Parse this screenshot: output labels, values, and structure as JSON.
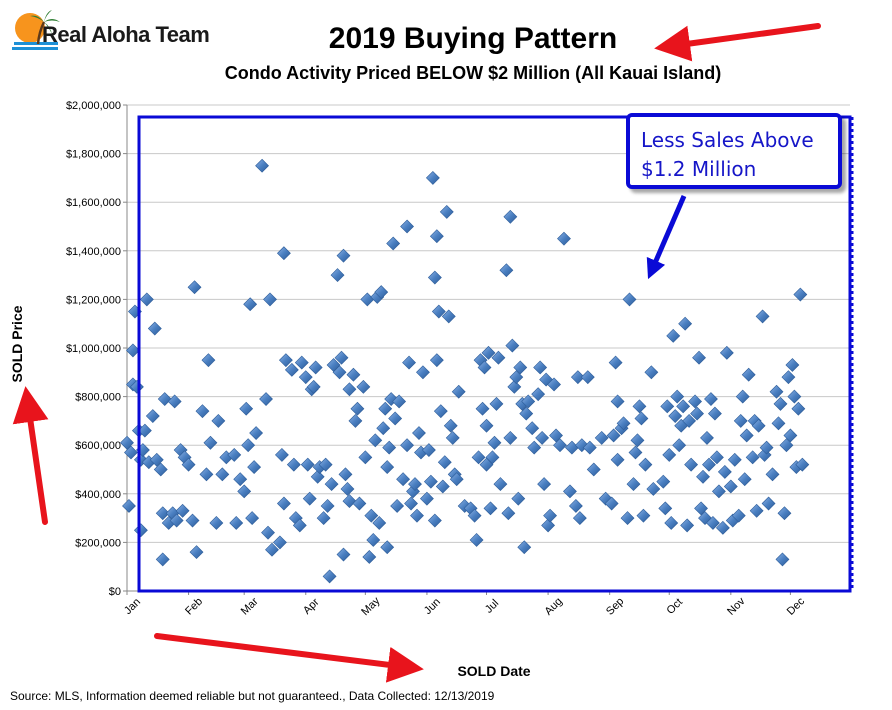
{
  "logo": {
    "text": "Real Aloha Team",
    "icon": "palm-tree-sunset-logo",
    "colors": {
      "sun": "#f7941d",
      "water": "#1e90d6",
      "palm": "#2e7d32"
    }
  },
  "chart_data": {
    "type": "scatter",
    "title": "2019 Buying Pattern",
    "subtitle": "Condo Activity Priced BELOW $2 Million (All Kauai Island)",
    "xlabel": "SOLD Date",
    "ylabel": "SOLD Price",
    "x_ticks": [
      "Jan",
      "Feb",
      "Mar",
      "Apr",
      "May",
      "Jun",
      "Jul",
      "Aug",
      "Sep",
      "Oct",
      "Nov",
      "Dec"
    ],
    "y_ticks": [
      "$0",
      "$200,000",
      "$400,000",
      "$600,000",
      "$800,000",
      "$1,000,000",
      "$1,200,000",
      "$1,400,000",
      "$1,600,000",
      "$1,800,000",
      "$2,000,000"
    ],
    "xlim": [
      "2019-01-01",
      "2019-12-31"
    ],
    "ylim": [
      0,
      2000000
    ],
    "grid": true,
    "legend": "none",
    "marker_color": "#4a7fc1",
    "annotation": {
      "text": "Less Sales Above\n$1.2 Million"
    },
    "points": [
      [
        "2019-01-01",
        610000
      ],
      [
        "2019-01-02",
        350000
      ],
      [
        "2019-01-03",
        570000
      ],
      [
        "2019-01-04",
        850000
      ],
      [
        "2019-01-04",
        990000
      ],
      [
        "2019-01-05",
        1150000
      ],
      [
        "2019-01-06",
        840000
      ],
      [
        "2019-01-07",
        660000
      ],
      [
        "2019-01-08",
        540000
      ],
      [
        "2019-01-08",
        250000
      ],
      [
        "2019-01-09",
        580000
      ],
      [
        "2019-01-10",
        660000
      ],
      [
        "2019-01-11",
        1200000
      ],
      [
        "2019-01-12",
        530000
      ],
      [
        "2019-01-14",
        720000
      ],
      [
        "2019-01-15",
        1080000
      ],
      [
        "2019-01-16",
        540000
      ],
      [
        "2019-01-18",
        500000
      ],
      [
        "2019-01-19",
        320000
      ],
      [
        "2019-01-19",
        130000
      ],
      [
        "2019-01-20",
        790000
      ],
      [
        "2019-01-22",
        280000
      ],
      [
        "2019-01-24",
        320000
      ],
      [
        "2019-01-25",
        780000
      ],
      [
        "2019-01-26",
        290000
      ],
      [
        "2019-01-28",
        580000
      ],
      [
        "2019-01-29",
        330000
      ],
      [
        "2019-01-30",
        550000
      ],
      [
        "2019-02-01",
        520000
      ],
      [
        "2019-02-03",
        290000
      ],
      [
        "2019-02-04",
        1250000
      ],
      [
        "2019-02-05",
        160000
      ],
      [
        "2019-02-08",
        740000
      ],
      [
        "2019-02-10",
        480000
      ],
      [
        "2019-02-11",
        950000
      ],
      [
        "2019-02-12",
        610000
      ],
      [
        "2019-02-15",
        280000
      ],
      [
        "2019-02-16",
        700000
      ],
      [
        "2019-02-18",
        480000
      ],
      [
        "2019-02-20",
        550000
      ],
      [
        "2019-02-24",
        560000
      ],
      [
        "2019-02-25",
        280000
      ],
      [
        "2019-02-27",
        460000
      ],
      [
        "2019-03-01",
        410000
      ],
      [
        "2019-03-02",
        750000
      ],
      [
        "2019-03-03",
        600000
      ],
      [
        "2019-03-04",
        1180000
      ],
      [
        "2019-03-05",
        300000
      ],
      [
        "2019-03-06",
        510000
      ],
      [
        "2019-03-07",
        650000
      ],
      [
        "2019-03-10",
        1750000
      ],
      [
        "2019-03-12",
        790000
      ],
      [
        "2019-03-13",
        240000
      ],
      [
        "2019-03-14",
        1200000
      ],
      [
        "2019-03-15",
        170000
      ],
      [
        "2019-03-19",
        200000
      ],
      [
        "2019-03-20",
        560000
      ],
      [
        "2019-03-21",
        1390000
      ],
      [
        "2019-03-21",
        360000
      ],
      [
        "2019-03-22",
        950000
      ],
      [
        "2019-03-25",
        910000
      ],
      [
        "2019-03-26",
        520000
      ],
      [
        "2019-03-27",
        300000
      ],
      [
        "2019-03-29",
        270000
      ],
      [
        "2019-03-30",
        940000
      ],
      [
        "2019-04-01",
        880000
      ],
      [
        "2019-04-02",
        520000
      ],
      [
        "2019-04-03",
        380000
      ],
      [
        "2019-04-04",
        830000
      ],
      [
        "2019-04-05",
        840000
      ],
      [
        "2019-04-06",
        920000
      ],
      [
        "2019-04-07",
        470000
      ],
      [
        "2019-04-08",
        510000
      ],
      [
        "2019-04-10",
        300000
      ],
      [
        "2019-04-11",
        520000
      ],
      [
        "2019-04-12",
        350000
      ],
      [
        "2019-04-13",
        60000
      ],
      [
        "2019-04-14",
        440000
      ],
      [
        "2019-04-15",
        930000
      ],
      [
        "2019-04-17",
        1300000
      ],
      [
        "2019-04-18",
        900000
      ],
      [
        "2019-04-19",
        960000
      ],
      [
        "2019-04-20",
        1380000
      ],
      [
        "2019-04-20",
        150000
      ],
      [
        "2019-04-21",
        480000
      ],
      [
        "2019-04-22",
        420000
      ],
      [
        "2019-04-23",
        830000
      ],
      [
        "2019-04-23",
        370000
      ],
      [
        "2019-04-25",
        890000
      ],
      [
        "2019-04-26",
        700000
      ],
      [
        "2019-04-27",
        750000
      ],
      [
        "2019-04-28",
        360000
      ],
      [
        "2019-04-30",
        840000
      ],
      [
        "2019-05-01",
        550000
      ],
      [
        "2019-05-02",
        1200000
      ],
      [
        "2019-05-03",
        140000
      ],
      [
        "2019-05-04",
        310000
      ],
      [
        "2019-05-05",
        210000
      ],
      [
        "2019-05-06",
        620000
      ],
      [
        "2019-05-07",
        1210000
      ],
      [
        "2019-05-08",
        280000
      ],
      [
        "2019-05-09",
        1230000
      ],
      [
        "2019-05-10",
        670000
      ],
      [
        "2019-05-11",
        750000
      ],
      [
        "2019-05-12",
        510000
      ],
      [
        "2019-05-12",
        180000
      ],
      [
        "2019-05-13",
        590000
      ],
      [
        "2019-05-14",
        790000
      ],
      [
        "2019-05-15",
        1430000
      ],
      [
        "2019-05-16",
        710000
      ],
      [
        "2019-05-17",
        350000
      ],
      [
        "2019-05-18",
        780000
      ],
      [
        "2019-05-20",
        460000
      ],
      [
        "2019-05-22",
        1500000
      ],
      [
        "2019-05-22",
        600000
      ],
      [
        "2019-05-23",
        940000
      ],
      [
        "2019-05-24",
        360000
      ],
      [
        "2019-05-25",
        410000
      ],
      [
        "2019-05-26",
        440000
      ],
      [
        "2019-05-27",
        310000
      ],
      [
        "2019-05-28",
        650000
      ],
      [
        "2019-05-29",
        570000
      ],
      [
        "2019-05-30",
        900000
      ],
      [
        "2019-06-01",
        380000
      ],
      [
        "2019-06-02",
        580000
      ],
      [
        "2019-06-03",
        450000
      ],
      [
        "2019-06-04",
        1700000
      ],
      [
        "2019-06-05",
        1290000
      ],
      [
        "2019-06-05",
        290000
      ],
      [
        "2019-06-06",
        950000
      ],
      [
        "2019-06-06",
        1460000
      ],
      [
        "2019-06-07",
        1150000
      ],
      [
        "2019-06-08",
        740000
      ],
      [
        "2019-06-09",
        430000
      ],
      [
        "2019-06-10",
        530000
      ],
      [
        "2019-06-11",
        1560000
      ],
      [
        "2019-06-12",
        1130000
      ],
      [
        "2019-06-13",
        680000
      ],
      [
        "2019-06-14",
        630000
      ],
      [
        "2019-06-15",
        480000
      ],
      [
        "2019-06-16",
        460000
      ],
      [
        "2019-06-17",
        820000
      ],
      [
        "2019-06-20",
        350000
      ],
      [
        "2019-06-23",
        340000
      ],
      [
        "2019-06-25",
        310000
      ],
      [
        "2019-06-26",
        210000
      ],
      [
        "2019-06-27",
        550000
      ],
      [
        "2019-06-28",
        950000
      ],
      [
        "2019-06-29",
        750000
      ],
      [
        "2019-06-30",
        920000
      ],
      [
        "2019-07-01",
        680000
      ],
      [
        "2019-07-01",
        520000
      ],
      [
        "2019-07-02",
        980000
      ],
      [
        "2019-07-03",
        340000
      ],
      [
        "2019-07-04",
        550000
      ],
      [
        "2019-07-05",
        610000
      ],
      [
        "2019-07-06",
        770000
      ],
      [
        "2019-07-07",
        960000
      ],
      [
        "2019-07-08",
        440000
      ],
      [
        "2019-07-11",
        1320000
      ],
      [
        "2019-07-12",
        320000
      ],
      [
        "2019-07-13",
        1540000
      ],
      [
        "2019-07-13",
        630000
      ],
      [
        "2019-07-14",
        1010000
      ],
      [
        "2019-07-15",
        840000
      ],
      [
        "2019-07-16",
        880000
      ],
      [
        "2019-07-17",
        380000
      ],
      [
        "2019-07-18",
        920000
      ],
      [
        "2019-07-19",
        770000
      ],
      [
        "2019-07-20",
        180000
      ],
      [
        "2019-07-21",
        730000
      ],
      [
        "2019-07-22",
        780000
      ],
      [
        "2019-07-24",
        670000
      ],
      [
        "2019-07-25",
        590000
      ],
      [
        "2019-07-27",
        810000
      ],
      [
        "2019-07-28",
        920000
      ],
      [
        "2019-07-29",
        630000
      ],
      [
        "2019-07-30",
        440000
      ],
      [
        "2019-07-31",
        870000
      ],
      [
        "2019-08-01",
        270000
      ],
      [
        "2019-08-02",
        310000
      ],
      [
        "2019-08-04",
        850000
      ],
      [
        "2019-08-05",
        640000
      ],
      [
        "2019-08-07",
        600000
      ],
      [
        "2019-08-09",
        1450000
      ],
      [
        "2019-08-12",
        410000
      ],
      [
        "2019-08-13",
        590000
      ],
      [
        "2019-08-15",
        350000
      ],
      [
        "2019-08-16",
        880000
      ],
      [
        "2019-08-17",
        300000
      ],
      [
        "2019-08-18",
        600000
      ],
      [
        "2019-08-21",
        880000
      ],
      [
        "2019-08-22",
        590000
      ],
      [
        "2019-08-24",
        500000
      ],
      [
        "2019-08-28",
        630000
      ],
      [
        "2019-08-30",
        380000
      ],
      [
        "2019-09-02",
        360000
      ],
      [
        "2019-09-03",
        640000
      ],
      [
        "2019-09-04",
        940000
      ],
      [
        "2019-09-05",
        780000
      ],
      [
        "2019-09-05",
        540000
      ],
      [
        "2019-09-07",
        670000
      ],
      [
        "2019-09-08",
        690000
      ],
      [
        "2019-09-10",
        300000
      ],
      [
        "2019-09-11",
        1200000
      ],
      [
        "2019-09-13",
        440000
      ],
      [
        "2019-09-14",
        570000
      ],
      [
        "2019-09-15",
        620000
      ],
      [
        "2019-09-16",
        760000
      ],
      [
        "2019-09-17",
        710000
      ],
      [
        "2019-09-18",
        310000
      ],
      [
        "2019-09-19",
        520000
      ],
      [
        "2019-09-22",
        900000
      ],
      [
        "2019-09-23",
        420000
      ],
      [
        "2019-09-28",
        450000
      ],
      [
        "2019-09-29",
        340000
      ],
      [
        "2019-09-30",
        760000
      ],
      [
        "2019-10-01",
        560000
      ],
      [
        "2019-10-02",
        280000
      ],
      [
        "2019-10-03",
        1050000
      ],
      [
        "2019-10-04",
        720000
      ],
      [
        "2019-10-05",
        800000
      ],
      [
        "2019-10-06",
        600000
      ],
      [
        "2019-10-07",
        680000
      ],
      [
        "2019-10-08",
        760000
      ],
      [
        "2019-10-09",
        1100000
      ],
      [
        "2019-10-10",
        270000
      ],
      [
        "2019-10-11",
        700000
      ],
      [
        "2019-10-12",
        520000
      ],
      [
        "2019-10-14",
        780000
      ],
      [
        "2019-10-15",
        730000
      ],
      [
        "2019-10-16",
        960000
      ],
      [
        "2019-10-17",
        340000
      ],
      [
        "2019-10-18",
        470000
      ],
      [
        "2019-10-19",
        300000
      ],
      [
        "2019-10-20",
        630000
      ],
      [
        "2019-10-21",
        520000
      ],
      [
        "2019-10-22",
        790000
      ],
      [
        "2019-10-23",
        280000
      ],
      [
        "2019-10-24",
        730000
      ],
      [
        "2019-10-25",
        550000
      ],
      [
        "2019-10-26",
        410000
      ],
      [
        "2019-10-28",
        260000
      ],
      [
        "2019-10-29",
        490000
      ],
      [
        "2019-10-30",
        980000
      ],
      [
        "2019-11-01",
        430000
      ],
      [
        "2019-11-02",
        290000
      ],
      [
        "2019-11-03",
        540000
      ],
      [
        "2019-11-05",
        310000
      ],
      [
        "2019-11-06",
        700000
      ],
      [
        "2019-11-07",
        800000
      ],
      [
        "2019-11-08",
        460000
      ],
      [
        "2019-11-09",
        640000
      ],
      [
        "2019-11-10",
        890000
      ],
      [
        "2019-11-12",
        550000
      ],
      [
        "2019-11-13",
        700000
      ],
      [
        "2019-11-14",
        330000
      ],
      [
        "2019-11-15",
        680000
      ],
      [
        "2019-11-17",
        1130000
      ],
      [
        "2019-11-18",
        560000
      ],
      [
        "2019-11-19",
        590000
      ],
      [
        "2019-11-20",
        360000
      ],
      [
        "2019-11-22",
        480000
      ],
      [
        "2019-11-24",
        820000
      ],
      [
        "2019-11-25",
        690000
      ],
      [
        "2019-11-26",
        770000
      ],
      [
        "2019-11-27",
        130000
      ],
      [
        "2019-11-28",
        320000
      ],
      [
        "2019-11-29",
        600000
      ],
      [
        "2019-11-30",
        880000
      ],
      [
        "2019-12-01",
        640000
      ],
      [
        "2019-12-02",
        930000
      ],
      [
        "2019-12-03",
        800000
      ],
      [
        "2019-12-04",
        510000
      ],
      [
        "2019-12-05",
        750000
      ],
      [
        "2019-12-06",
        1220000
      ],
      [
        "2019-12-07",
        520000
      ]
    ]
  },
  "source_note": "Source: MLS, Information deemed reliable but not guaranteed., Data Collected: 12/13/2019"
}
